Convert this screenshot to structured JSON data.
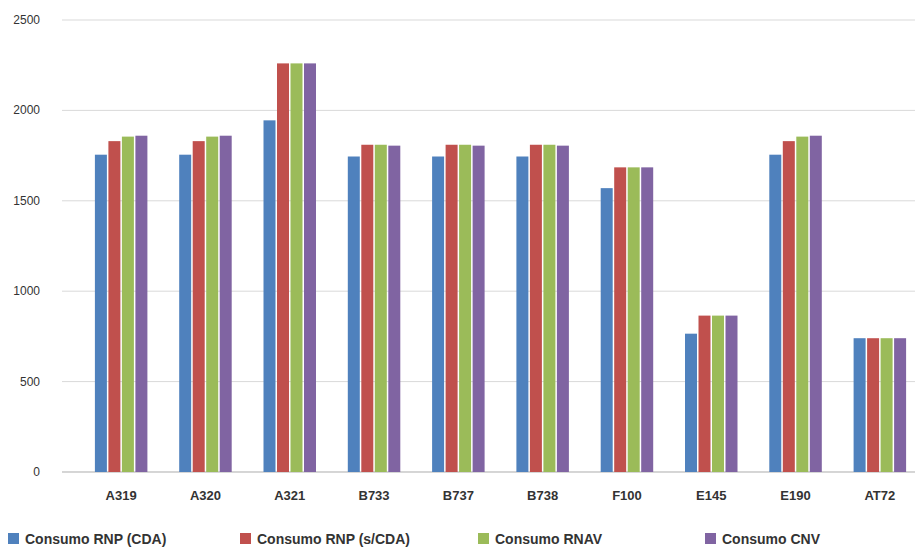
{
  "chart_data": {
    "type": "bar",
    "categories": [
      "A319",
      "A320",
      "A321",
      "B733",
      "B737",
      "B738",
      "F100",
      "E145",
      "E190",
      "AT72"
    ],
    "series": [
      {
        "name": "Consumo RNP (CDA)",
        "color": "#4f81bd",
        "values": [
          1755,
          1755,
          1945,
          1745,
          1745,
          1745,
          1570,
          765,
          1755,
          740
        ]
      },
      {
        "name": "Consumo RNP (s/CDA)",
        "color": "#c0504d",
        "values": [
          1830,
          1830,
          2260,
          1810,
          1810,
          1810,
          1685,
          865,
          1830,
          740
        ]
      },
      {
        "name": "Consumo RNAV",
        "color": "#9bbb59",
        "values": [
          1855,
          1855,
          2260,
          1810,
          1810,
          1810,
          1685,
          865,
          1855,
          740
        ]
      },
      {
        "name": "Consumo CNV",
        "color": "#8064a2",
        "values": [
          1860,
          1860,
          2260,
          1805,
          1805,
          1805,
          1685,
          865,
          1860,
          740
        ]
      }
    ],
    "ylim": [
      0,
      2500
    ],
    "yticks": [
      0,
      500,
      1000,
      1500,
      2000,
      2500
    ],
    "grid": true,
    "legend": "bottom"
  }
}
